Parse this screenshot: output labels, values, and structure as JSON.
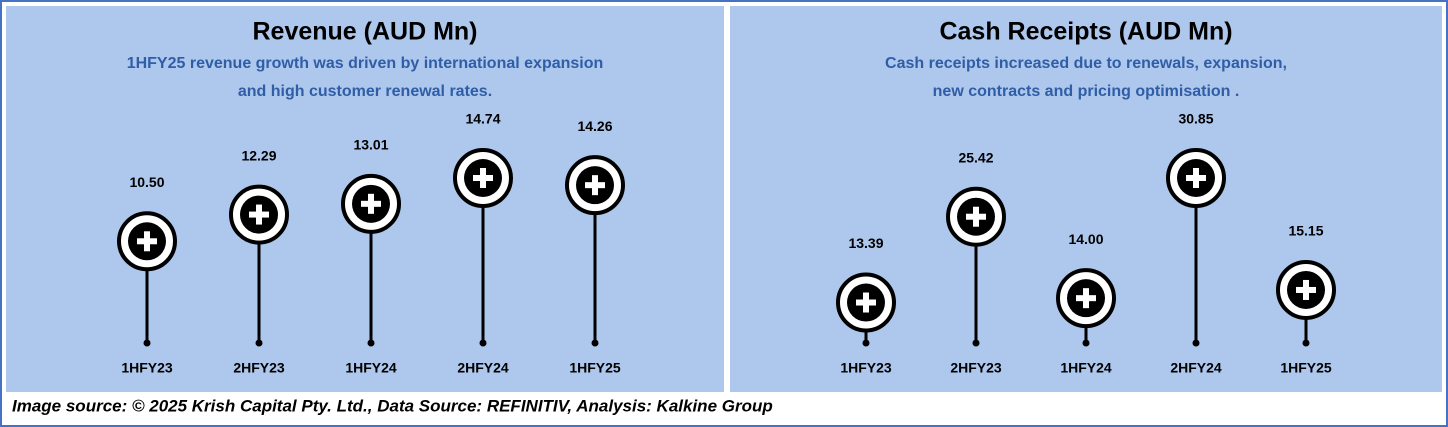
{
  "chart_data": [
    {
      "type": "lollipop",
      "title": "Revenue (AUD Mn)",
      "subtitle": [
        "1HFY25 revenue growth was driven by international expansion",
        "and high customer renewal rates."
      ],
      "categories": [
        "1HFY23",
        "2HFY23",
        "1HFY24",
        "2HFY24",
        "1HFY25"
      ],
      "values": [
        10.5,
        12.29,
        13.01,
        14.74,
        14.26
      ],
      "value_labels": [
        "10.50",
        "12.29",
        "13.01",
        "14.74",
        "14.26"
      ]
    },
    {
      "type": "lollipop",
      "title": "Cash Receipts (AUD Mn)",
      "subtitle": [
        "Cash receipts increased due to renewals, expansion,",
        "new contracts and pricing optimisation ."
      ],
      "categories": [
        "1HFY23",
        "2HFY23",
        "1HFY24",
        "2HFY24",
        "1HFY25"
      ],
      "values": [
        13.39,
        25.42,
        14.0,
        30.85,
        15.15
      ],
      "value_labels": [
        "13.39",
        "25.42",
        "14.00",
        "30.85",
        "15.15"
      ]
    }
  ],
  "source": "Image source: © 2025 Krish Capital Pty. Ltd., Data Source: REFINITIV, Analysis: Kalkine Group"
}
